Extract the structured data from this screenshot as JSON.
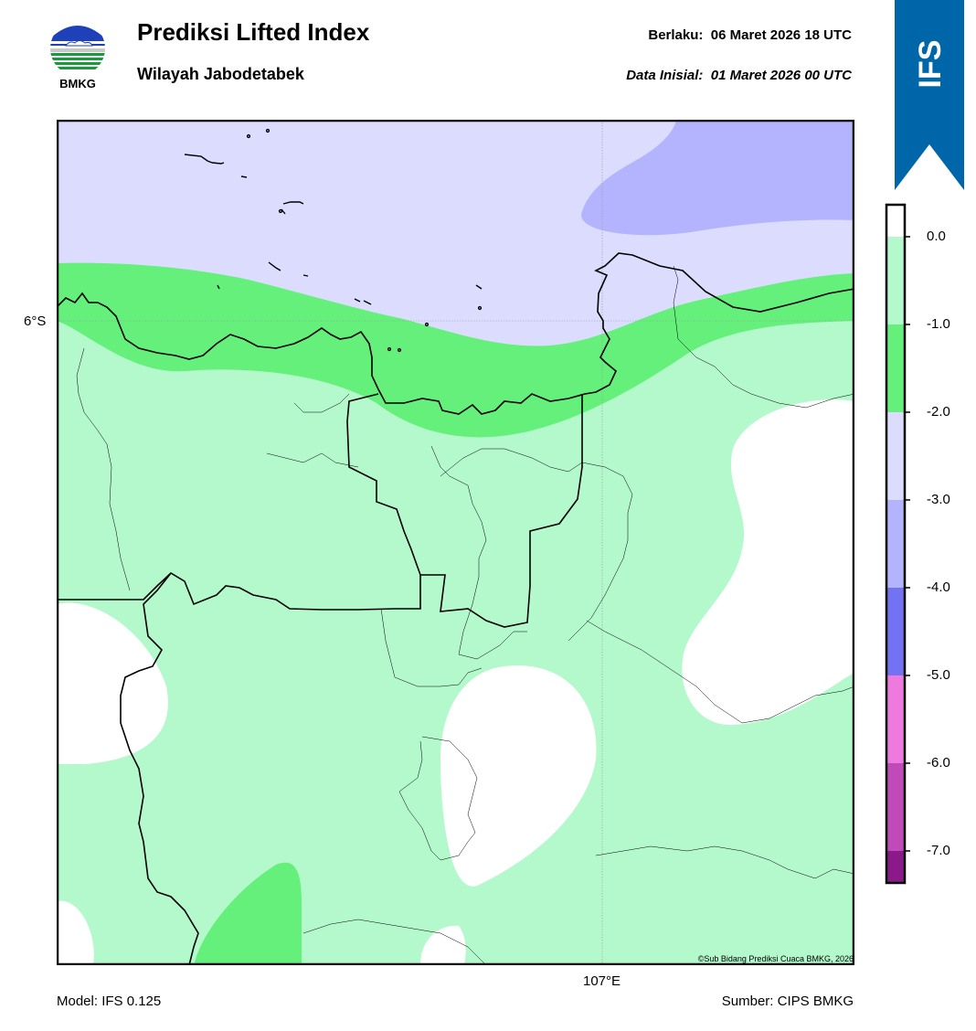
{
  "header": {
    "logo_text": "BMKG",
    "title": "Prediksi Lifted Index",
    "subtitle": "Wilayah Jabodetabek",
    "valid_label": "Berlaku:",
    "valid_value": "06 Maret 2026 18 UTC",
    "init_label": "Data Inisial:",
    "init_value": "01 Maret 2026 00 UTC"
  },
  "ribbon": {
    "text": "IFS",
    "color": "#0066aa"
  },
  "map": {
    "lat_label": "6°S",
    "lon_label": "107°E",
    "credit": "©Sub Bidang Prediksi Cuaca BMKG, 2026"
  },
  "colorbar": {
    "ticks": [
      "0.0",
      "-1.0",
      "-2.0",
      "-3.0",
      "-4.0",
      "-5.0",
      "-6.0",
      "-7.0"
    ],
    "colors": {
      "above_0": "#ffffff",
      "0_to_-1": "#b4f9cc",
      "-1_to_-2": "#64f07a",
      "-2_to_-3": "#dcdcfe",
      "-3_to_-4": "#b4b4fe",
      "-4_to_-5": "#7272f2",
      "-5_to_-6": "#ee7ae0",
      "-6_to_-7": "#c04ab8",
      "below_-7": "#8a1a8a"
    }
  },
  "footer": {
    "model": "Model: IFS 0.125",
    "source": "Sumber: CIPS BMKG"
  }
}
